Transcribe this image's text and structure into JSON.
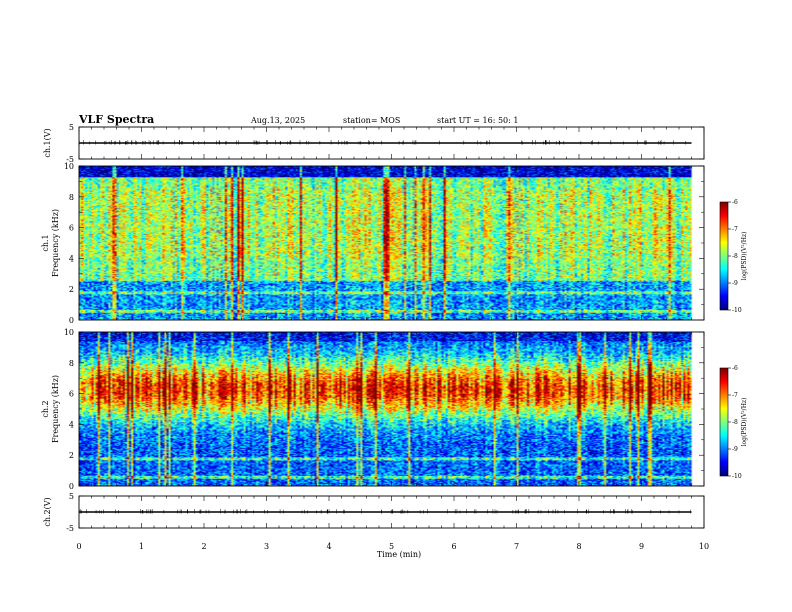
{
  "header": {
    "title": "VLF Spectra",
    "date": "Aug.13, 2025",
    "station": "station= MOS",
    "start": "start  UT  =   16: 50: 1"
  },
  "chart_data": [
    {
      "type": "line",
      "panel": "waveform-ch1",
      "ylabel": "ch.1(V)",
      "ylim": [
        -5,
        5
      ],
      "yticks": [
        "5",
        "-5"
      ],
      "xlim": [
        0,
        10
      ],
      "series": [
        {
          "values_const": 0
        }
      ]
    },
    {
      "type": "heatmap",
      "panel": "spectrogram-ch1",
      "ylabel": "ch.1\nFrequency (kHz)",
      "ylabel_lines": [
        "ch.1",
        "Frequency (kHz)"
      ],
      "ylim": [
        0,
        10
      ],
      "yticks": [
        "0",
        "2",
        "4",
        "6",
        "8",
        "10"
      ],
      "xlim": [
        0,
        10
      ],
      "data_end_min": 9.8,
      "colorbar": {
        "label": "log(PSD)(V²/Hz)",
        "ticks": [
          "-6",
          "-7",
          "-8",
          "-9",
          "-10"
        ],
        "range": [
          -10,
          -6
        ]
      }
    },
    {
      "type": "heatmap",
      "panel": "spectrogram-ch2",
      "ylabel": "ch.2\nFrequency (kHz)",
      "ylabel_lines": [
        "ch.2",
        "Frequency (kHz)"
      ],
      "ylim": [
        0,
        10
      ],
      "yticks": [
        "0",
        "2",
        "4",
        "6",
        "8",
        "10"
      ],
      "xlim": [
        0,
        10
      ],
      "data_end_min": 9.8,
      "colorbar": {
        "label": "log(PSD)(V²/Hz)",
        "ticks": [
          "-6",
          "-7",
          "-8",
          "-9",
          "-10"
        ],
        "range": [
          -10,
          -6
        ]
      }
    },
    {
      "type": "line",
      "panel": "waveform-ch2",
      "ylabel": "ch.2(V)",
      "ylim": [
        -5,
        5
      ],
      "yticks": [
        "5",
        "-5"
      ],
      "xlim": [
        0,
        10
      ],
      "series": [
        {
          "values_const": 0
        }
      ]
    }
  ],
  "xaxis": {
    "label": "Time  (min)",
    "ticks": [
      "0",
      "1",
      "2",
      "3",
      "4",
      "5",
      "6",
      "7",
      "8",
      "9",
      "10"
    ]
  }
}
